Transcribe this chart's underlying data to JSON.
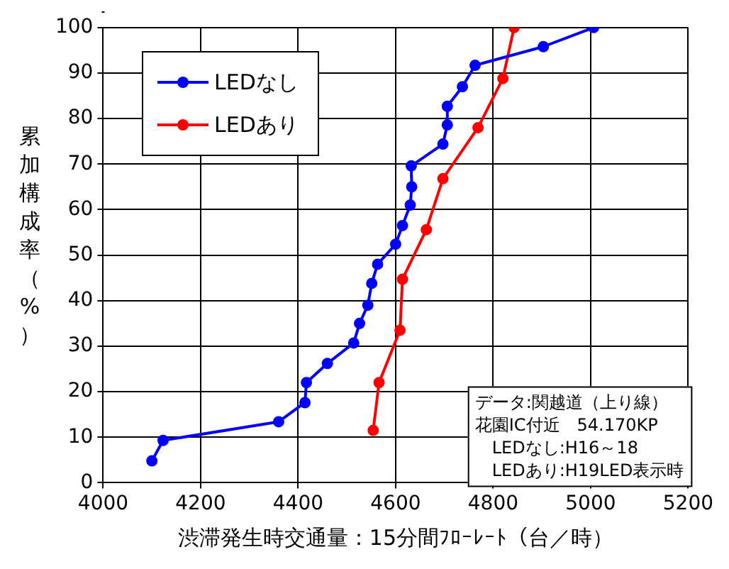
{
  "chart_data": {
    "type": "line",
    "xlabel": "渋滞発生時交通量：15分間ﾌﾛｰﾚｰﾄ（台／時）",
    "ylabel": "累加構成率（%）",
    "xlim": [
      4000,
      5200
    ],
    "xticks": [
      4000,
      4200,
      4400,
      4600,
      4800,
      5000,
      5200
    ],
    "ylim": [
      0,
      100
    ],
    "yticks": [
      0,
      10,
      20,
      30,
      40,
      50,
      60,
      70,
      80,
      90,
      100
    ],
    "grid": true,
    "legend": "top left",
    "marker": "circle",
    "line_style": "solid",
    "series": [
      {
        "name": "LEDなし",
        "color": "#0000ff",
        "x": [
          4100,
          4123,
          4360,
          4414,
          4417,
          4460,
          4514,
          4526,
          4543,
          4551,
          4563,
          4600,
          4614,
          4630,
          4633,
          4632,
          4697,
          4706,
          4706,
          4737,
          4763,
          4903,
          5006
        ],
        "values": [
          4.8,
          9.3,
          13.4,
          17.6,
          22,
          26.2,
          30.7,
          35,
          39,
          43.8,
          48,
          52.4,
          56.5,
          61,
          65,
          69.6,
          74.4,
          78.6,
          82.7,
          87,
          91.7,
          95.8,
          100
        ]
      },
      {
        "name": "LEDあり",
        "color": "#ff0000",
        "x": [
          4554,
          4566,
          4609,
          4614,
          4663,
          4697,
          4769,
          4820,
          4843
        ],
        "values": [
          11.5,
          22,
          33.5,
          44.7,
          55.6,
          66.8,
          78,
          88.8,
          100
        ]
      }
    ],
    "annotations": [
      "データ:関越道（上り線）",
      "花園IC付近　54.170KP",
      "　LEDなし:H16～18",
      "　LEDあり:H19LED表示時"
    ]
  }
}
